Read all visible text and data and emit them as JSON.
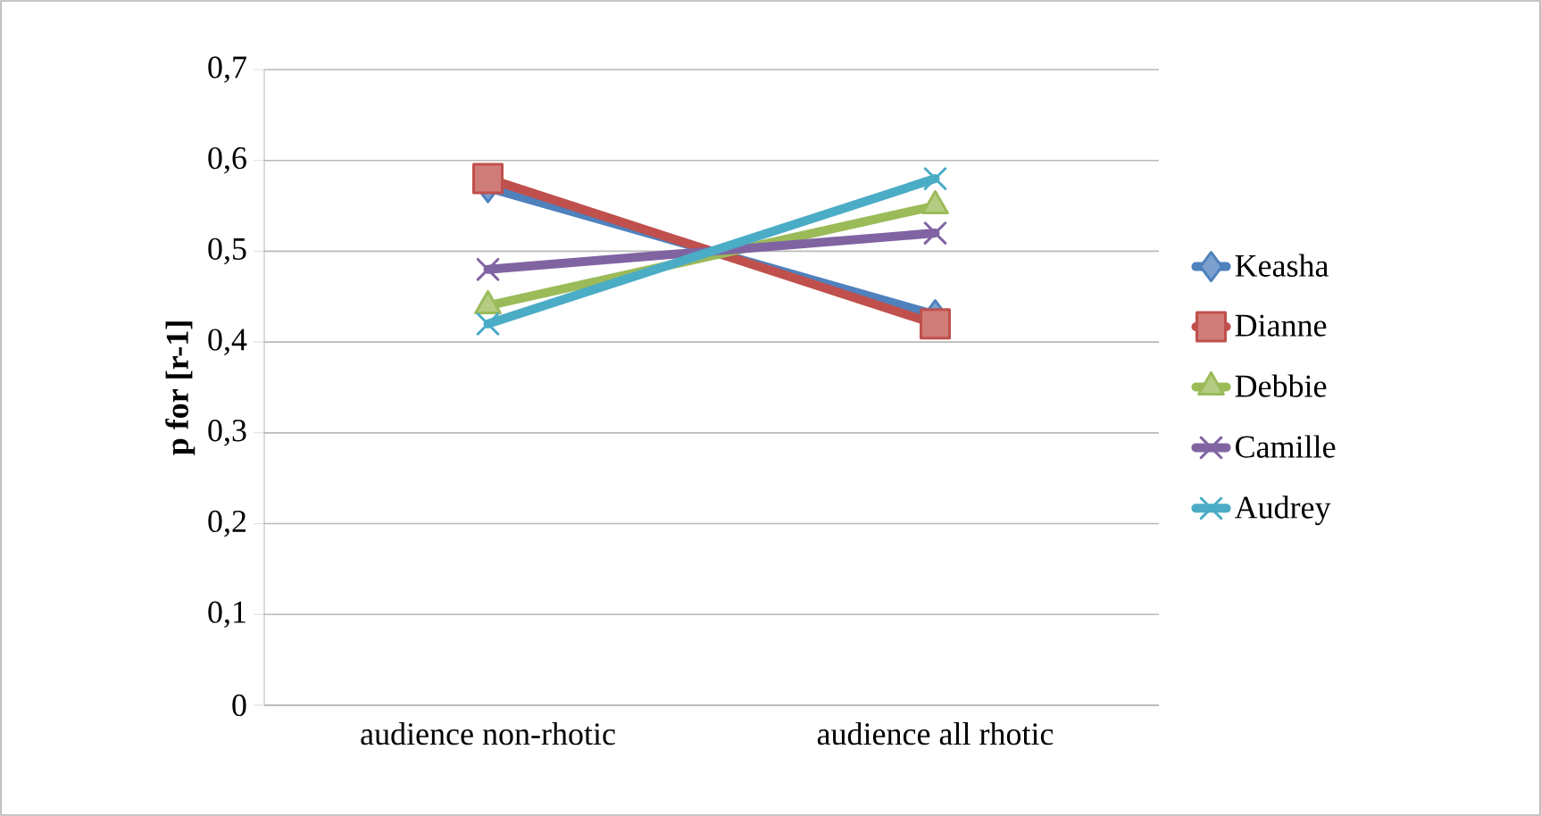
{
  "chart_data": {
    "type": "line",
    "ylabel": "**p for [r-1]**",
    "categories": [
      "audience non-rhotic",
      "audience all rhotic"
    ],
    "series": [
      {
        "name": "Keasha",
        "color": "#4f81bd",
        "marker": "diamond",
        "values": [
          0.57,
          0.43
        ]
      },
      {
        "name": "Dianne",
        "color": "#c0504d",
        "marker": "square",
        "values": [
          0.58,
          0.42
        ]
      },
      {
        "name": "Debbie",
        "color": "#9bbb59",
        "marker": "triangle",
        "values": [
          0.44,
          0.55
        ]
      },
      {
        "name": "Camille",
        "color": "#8064a2",
        "marker": "cross",
        "values": [
          0.48,
          0.52
        ]
      },
      {
        "name": "Audrey",
        "color": "#4bacc6",
        "marker": "cross",
        "values": [
          0.42,
          0.58
        ]
      }
    ],
    "ylim": [
      0,
      0.7
    ],
    "yticks": [
      {
        "value": 0,
        "label": "0"
      },
      {
        "value": 0.1,
        "label": "0,1"
      },
      {
        "value": 0.2,
        "label": "0,2"
      },
      {
        "value": 0.3,
        "label": "0,3"
      },
      {
        "value": 0.4,
        "label": "0,4"
      },
      {
        "value": 0.5,
        "label": "0,5"
      },
      {
        "value": 0.6,
        "label": "0,6"
      },
      {
        "value": 0.7,
        "label": "0,7"
      }
    ],
    "grid": "y",
    "legend": "right",
    "line_style": "solid"
  }
}
